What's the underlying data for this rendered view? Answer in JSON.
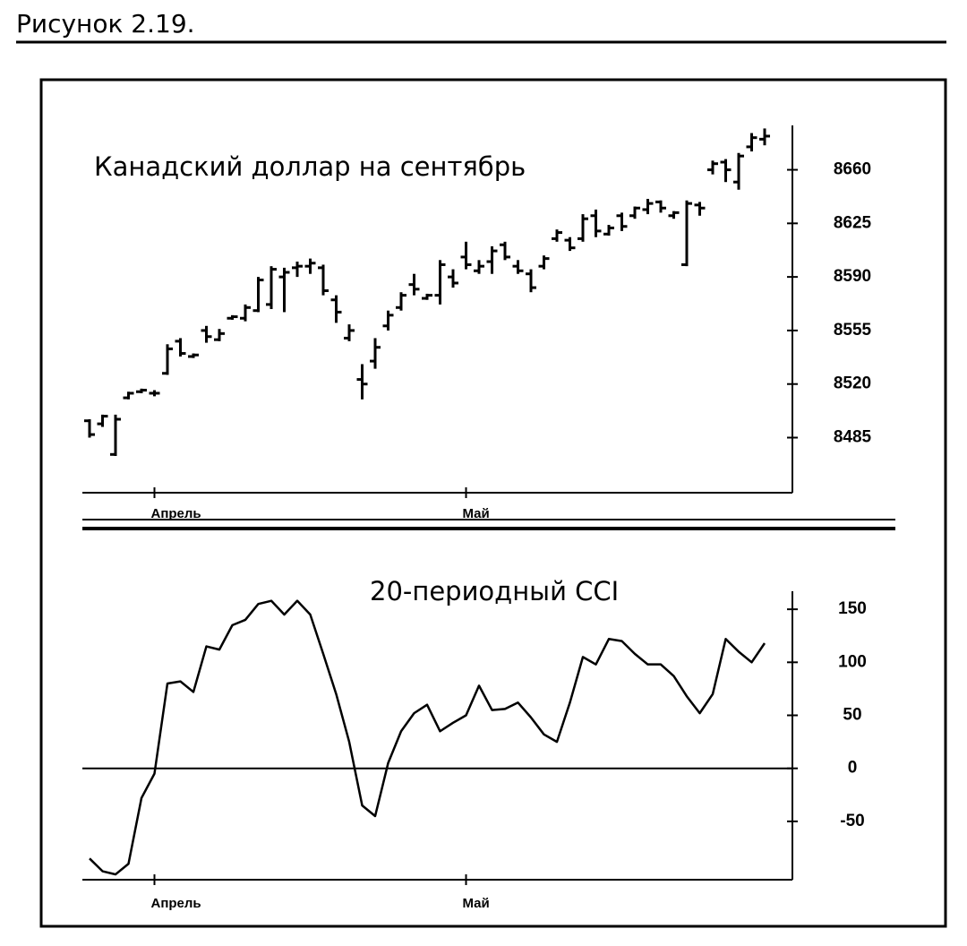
{
  "caption": "Рисунок 2.19.",
  "chart_data": [
    {
      "type": "ohlc",
      "title": "Канадский доллар на сентябрь",
      "color": "#000000",
      "categories": [
        null,
        null,
        null,
        null,
        null,
        "Апрель",
        null,
        null,
        null,
        null,
        null,
        null,
        null,
        null,
        null,
        null,
        null,
        null,
        null,
        null,
        null,
        null,
        null,
        null,
        null,
        null,
        null,
        null,
        null,
        "Май",
        null,
        null,
        null,
        null,
        null,
        null,
        null,
        null,
        null,
        null,
        null,
        null,
        null,
        null,
        null,
        null,
        null,
        null,
        null,
        null,
        null,
        null,
        null
      ],
      "open": [
        8496,
        8494,
        8474,
        8511,
        8515,
        8514,
        8527,
        8548,
        8538,
        8555,
        8549,
        8563,
        8563,
        8568,
        8572,
        8590,
        8596,
        8597,
        8596,
        8575,
        8550,
        8523,
        8535,
        8558,
        8570,
        8585,
        8576,
        8578,
        8590,
        8603,
        8594,
        8600,
        8611,
        8597,
        8592,
        8597,
        8615,
        8614,
        8615,
        8630,
        8618,
        8630,
        8630,
        8634,
        8639,
        8630,
        8598,
        8637,
        8660,
        8665,
        8652,
        8675,
        8680
      ],
      "high": [
        8497,
        8500,
        8500,
        8515,
        8517,
        8516,
        8546,
        8550,
        8540,
        8558,
        8556,
        8565,
        8572,
        8590,
        8597,
        8596,
        8600,
        8602,
        8598,
        8578,
        8559,
        8533,
        8550,
        8568,
        8580,
        8592,
        8579,
        8601,
        8595,
        8613,
        8601,
        8610,
        8613,
        8601,
        8595,
        8604,
        8621,
        8616,
        8631,
        8634,
        8624,
        8632,
        8636,
        8641,
        8640,
        8633,
        8640,
        8639,
        8666,
        8667,
        8671,
        8684,
        8687
      ],
      "low": [
        8485,
        8492,
        8473,
        8510,
        8514,
        8512,
        8526,
        8538,
        8537,
        8547,
        8548,
        8562,
        8561,
        8567,
        8569,
        8567,
        8590,
        8592,
        8578,
        8560,
        8548,
        8510,
        8530,
        8555,
        8568,
        8578,
        8575,
        8572,
        8583,
        8595,
        8592,
        8592,
        8601,
        8592,
        8580,
        8595,
        8613,
        8607,
        8613,
        8616,
        8617,
        8620,
        8628,
        8631,
        8632,
        8628,
        8597,
        8630,
        8657,
        8652,
        8647,
        8672,
        8676
      ],
      "close": [
        8487,
        8499,
        8497,
        8514,
        8516,
        8514,
        8543,
        8540,
        8539,
        8551,
        8553,
        8564,
        8570,
        8588,
        8595,
        8593,
        8597,
        8599,
        8581,
        8567,
        8555,
        8520,
        8544,
        8565,
        8578,
        8582,
        8578,
        8598,
        8586,
        8598,
        8597,
        8607,
        8603,
        8594,
        8583,
        8602,
        8619,
        8609,
        8628,
        8620,
        8622,
        8623,
        8635,
        8638,
        8635,
        8632,
        8638,
        8635,
        8664,
        8660,
        8669,
        8681,
        8682
      ],
      "ylim": [
        8449,
        8689
      ],
      "yticks": [
        8485,
        8520,
        8555,
        8590,
        8625,
        8660
      ]
    },
    {
      "type": "line",
      "title": "20-периодный CCI",
      "color": "#000000",
      "zero_line": true,
      "categories": [
        null,
        null,
        null,
        null,
        null,
        "Апрель",
        null,
        null,
        null,
        null,
        null,
        null,
        null,
        null,
        null,
        null,
        null,
        null,
        null,
        null,
        null,
        null,
        null,
        null,
        null,
        null,
        null,
        null,
        null,
        "Май",
        null,
        null,
        null,
        null,
        null,
        null,
        null,
        null,
        null,
        null,
        null,
        null,
        null,
        null,
        null,
        null,
        null,
        null,
        null,
        null,
        null,
        null,
        null
      ],
      "values": [
        -85,
        -97,
        -100,
        -90,
        -28,
        -5,
        80,
        82,
        72,
        115,
        112,
        135,
        140,
        155,
        158,
        145,
        158,
        145,
        108,
        70,
        25,
        -35,
        -45,
        5,
        35,
        52,
        60,
        35,
        43,
        50,
        78,
        55,
        56,
        62,
        48,
        32,
        25,
        62,
        105,
        98,
        122,
        120,
        108,
        98,
        98,
        87,
        68,
        52,
        70,
        122,
        110,
        100,
        118
      ],
      "ylim": [
        -105,
        167
      ],
      "yticks": [
        -50,
        0,
        50,
        100,
        150
      ]
    }
  ]
}
